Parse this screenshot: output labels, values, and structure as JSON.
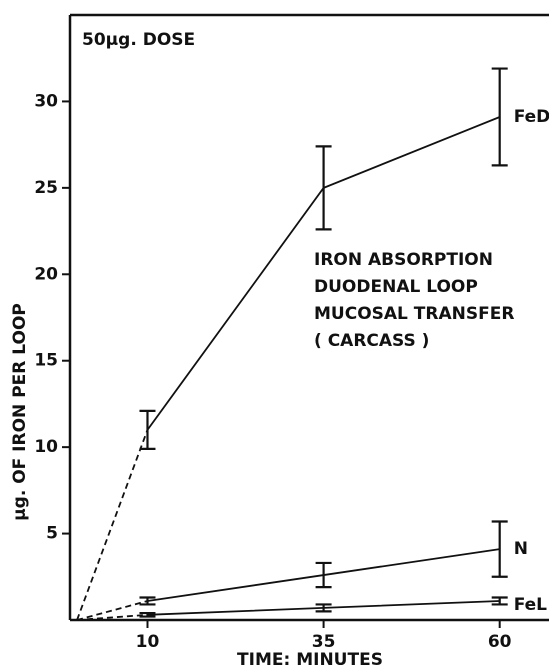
{
  "chart_data": {
    "type": "line",
    "annotation": "50µg. DOSE",
    "title_lines": [
      "IRON ABSORPTION",
      "DUODENAL LOOP",
      "MUCOSAL TRANSFER",
      "( CARCASS )"
    ],
    "xlabel": "TIME: MINUTES",
    "ylabel": "µg. OF IRON PER LOOP",
    "x": [
      0,
      10,
      35,
      60
    ],
    "series": [
      {
        "name": "FeD",
        "color": "#111111",
        "values": [
          0,
          11,
          25,
          29.1
        ],
        "errors": [
          null,
          1.1,
          2.4,
          2.8
        ]
      },
      {
        "name": "N",
        "color": "#111111",
        "values": [
          0,
          1.1,
          2.6,
          4.1
        ],
        "errors": [
          null,
          0.2,
          0.7,
          1.6
        ]
      },
      {
        "name": "FeL",
        "color": "#111111",
        "values": [
          0,
          0.3,
          0.7,
          1.1
        ],
        "errors": [
          null,
          0.1,
          0.2,
          0.2
        ]
      }
    ],
    "first_segment_style": "dashed",
    "xlim": [
      -1,
      67
    ],
    "xticks": [
      10,
      35,
      60
    ],
    "ylim": [
      0,
      35
    ],
    "yticks": [
      5,
      10,
      15,
      20,
      25,
      30
    ]
  }
}
